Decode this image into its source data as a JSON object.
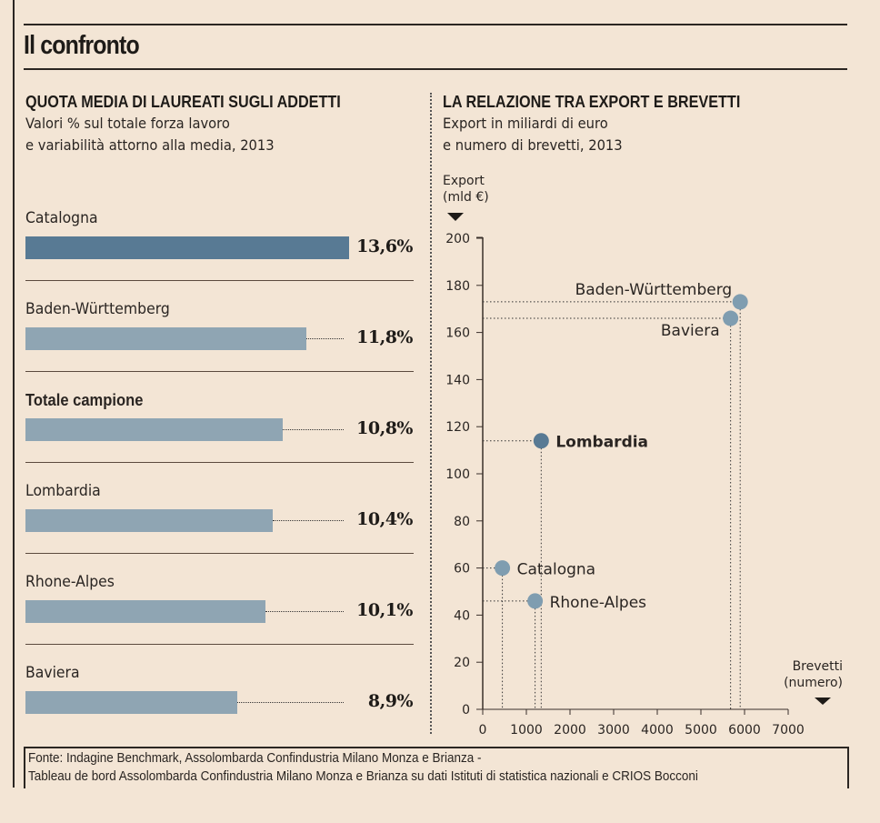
{
  "title": "Il confronto",
  "left_panel": {
    "title": "QUOTA MEDIA DI LAUREATI SUGLI ADDETTI",
    "subtitle_1": "Valori % sul totale forza lavoro",
    "subtitle_2": "e variabilità attorno alla media, 2013"
  },
  "right_panel": {
    "title": "LA RELAZIONE TRA EXPORT E BREVETTI",
    "subtitle_1": "Export in miliardi di euro",
    "subtitle_2": "e numero di brevetti, 2013"
  },
  "footer": {
    "line_1": "Fonte: Indagine Benchmark, Assolombarda Confindustria Milano Monza e Brianza -",
    "line_2": "Tableau de bord Assolombarda Confindustria Milano Monza e Brianza su dati Istituti di statistica nazionali e CRIOS Bocconi"
  },
  "colors": {
    "background": "#f3e5d5",
    "highlight": "#587a94",
    "bar": "#8fa5b3",
    "point": "#7f9db0",
    "ink": "#1e1b18"
  },
  "chart_data": [
    {
      "type": "bar",
      "orientation": "horizontal",
      "title": "QUOTA MEDIA DI LAUREATI SUGLI ADDETTI",
      "subtitle": "Valori % sul totale forza lavoro e variabilità attorno alla media, 2013",
      "categories": [
        "Catalogna",
        "Baden-Württemberg",
        "Totale campione",
        "Lombardia",
        "Rhone-Alpes",
        "Baviera"
      ],
      "values": [
        13.6,
        11.8,
        10.8,
        10.4,
        10.1,
        8.9
      ],
      "value_labels": [
        "13,6%",
        "11,8%",
        "10,8%",
        "10,4%",
        "10,1%",
        "8,9%"
      ],
      "highlight": [
        "Catalogna"
      ],
      "bold_labels": [
        "Totale campione"
      ],
      "unit": "%",
      "xlim": [
        0,
        13.6
      ],
      "whisker_to": 13.6
    },
    {
      "type": "scatter",
      "title": "LA RELAZIONE TRA EXPORT E BREVETTI",
      "subtitle": "Export in miliardi di euro e numero di brevetti, 2013",
      "xlabel": "Brevetti (numero)",
      "xlabel_lines": [
        "Brevetti",
        "(numero)"
      ],
      "ylabel": "Export (mld €)",
      "ylabel_lines": [
        "Export",
        "(mld €)"
      ],
      "xlim": [
        0,
        7000
      ],
      "ylim": [
        0,
        200
      ],
      "xticks": [
        0,
        1000,
        2000,
        3000,
        4000,
        5000,
        6000,
        7000
      ],
      "yticks": [
        0,
        20,
        40,
        60,
        80,
        100,
        120,
        140,
        160,
        180,
        200
      ],
      "grid": false,
      "points": [
        {
          "name": "Baden-Württemberg",
          "x": 5900,
          "y": 173,
          "label_side": "above-left",
          "bold": false,
          "highlight": false
        },
        {
          "name": "Baviera",
          "x": 5680,
          "y": 166,
          "label_side": "below-left",
          "bold": false,
          "highlight": false
        },
        {
          "name": "Lombardia",
          "x": 1340,
          "y": 114,
          "label_side": "right",
          "bold": true,
          "highlight": true
        },
        {
          "name": "Catalogna",
          "x": 450,
          "y": 60,
          "label_side": "right",
          "bold": false,
          "highlight": false
        },
        {
          "name": "Rhone-Alpes",
          "x": 1200,
          "y": 46,
          "label_side": "right",
          "bold": false,
          "highlight": false
        }
      ]
    }
  ]
}
